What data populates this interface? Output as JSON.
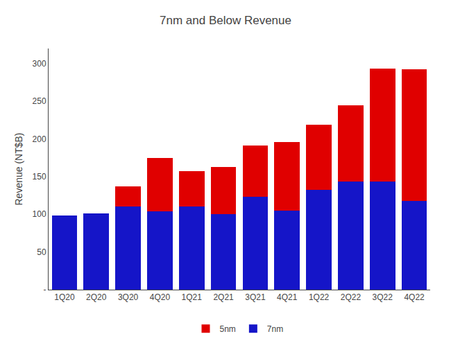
{
  "chart_data": {
    "type": "bar",
    "stacked": true,
    "title": "7nm and Below Revenue",
    "ylabel": "Revenue (NT$B)",
    "categories": [
      "1Q20",
      "2Q20",
      "3Q20",
      "4Q20",
      "1Q21",
      "2Q21",
      "3Q21",
      "4Q21",
      "1Q22",
      "2Q22",
      "3Q22",
      "4Q22"
    ],
    "series": [
      {
        "name": "7nm",
        "color": "#1515c8",
        "values": [
          98,
          101,
          110,
          104,
          110,
          100,
          123,
          105,
          132,
          143,
          143,
          118
        ]
      },
      {
        "name": "5nm",
        "color": "#e00000",
        "values": [
          0,
          0,
          27,
          71,
          47,
          63,
          68,
          91,
          87,
          102,
          150,
          174
        ]
      }
    ],
    "ylim": [
      0,
      320
    ],
    "yticks": [
      {
        "value": 0,
        "label": "-"
      },
      50,
      100,
      150,
      200,
      250,
      300
    ],
    "grid": false,
    "legend": "bottom"
  }
}
